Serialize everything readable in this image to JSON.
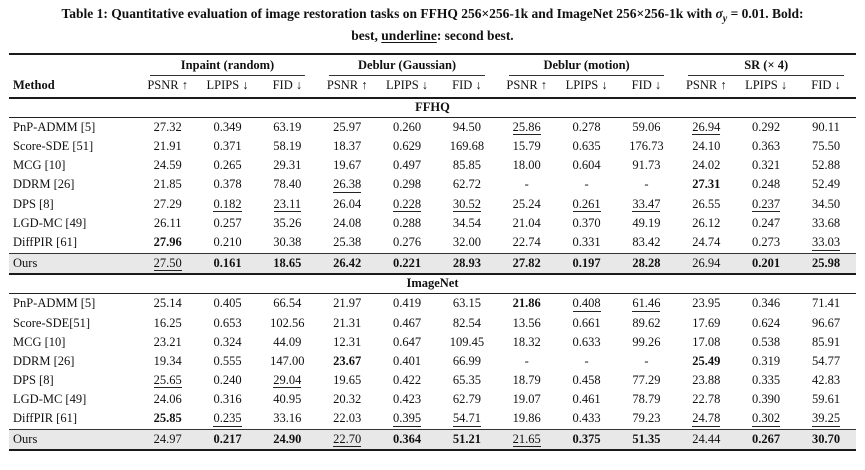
{
  "title": {
    "line1_pre": "Table 1: Quantitative evaluation of image restoration tasks on FFHQ 256×256-1k and ImageNet 256×256-1k with ",
    "sigma": "σ",
    "sigma_sub": "y",
    "line1_post": " = 0.01. Bold:",
    "line2_pre": "best, ",
    "underline_word": "underline",
    "line2_post": ": second best."
  },
  "table": {
    "method_header": "Method",
    "groups": [
      {
        "label": "Inpaint (random)"
      },
      {
        "label": "Deblur (Gaussian)"
      },
      {
        "label": "Deblur (motion)"
      },
      {
        "label": "SR (× 4)"
      }
    ],
    "metric_headers": [
      "PSNR ↑",
      "LPIPS ↓",
      "FID ↓"
    ],
    "legend": {
      "bold_means": "best",
      "underline_means": "second best"
    },
    "sections": [
      {
        "name": "FFHQ",
        "rows": [
          {
            "method": "PnP-ADMM [5]",
            "cells": [
              "27.32",
              "0.349",
              "63.19",
              "25.97",
              "0.260",
              "94.50",
              "u|25.86",
              "0.278",
              "59.06",
              "u|26.94",
              "0.292",
              "90.11"
            ]
          },
          {
            "method": "Score-SDE [51]",
            "cells": [
              "21.91",
              "0.371",
              "58.19",
              "18.37",
              "0.629",
              "169.68",
              "15.79",
              "0.635",
              "176.73",
              "24.10",
              "0.363",
              "75.50"
            ]
          },
          {
            "method": "MCG [10]",
            "cells": [
              "24.59",
              "0.265",
              "29.31",
              "19.67",
              "0.497",
              "85.85",
              "18.00",
              "0.604",
              "91.73",
              "24.02",
              "0.321",
              "52.88"
            ]
          },
          {
            "method": "DDRM [26]",
            "cells": [
              "21.85",
              "0.378",
              "78.40",
              "u|26.38",
              "0.298",
              "62.72",
              "-",
              "-",
              "-",
              "b|27.31",
              "0.248",
              "52.49"
            ]
          },
          {
            "method": "DPS [8]",
            "cells": [
              "27.29",
              "u|0.182",
              "u|23.11",
              "26.04",
              "u|0.228",
              "u|30.52",
              "25.24",
              "u|0.261",
              "u|33.47",
              "26.55",
              "u|0.237",
              "34.50"
            ]
          },
          {
            "method": "LGD-MC [49]",
            "cells": [
              "26.11",
              "0.257",
              "35.26",
              "24.08",
              "0.288",
              "34.54",
              "21.04",
              "0.370",
              "49.19",
              "26.12",
              "0.247",
              "33.68"
            ]
          },
          {
            "method": "DiffPIR [61]",
            "cells": [
              "b|27.96",
              "0.210",
              "30.38",
              "25.38",
              "0.276",
              "32.00",
              "22.74",
              "0.331",
              "83.42",
              "24.74",
              "0.273",
              "u|33.03"
            ]
          },
          {
            "method": "Ours",
            "highlight": true,
            "cells": [
              "u|27.50",
              "b|0.161",
              "b|18.65",
              "b|26.42",
              "b|0.221",
              "b|28.93",
              "b|27.82",
              "b|0.197",
              "b|28.28",
              "26.94",
              "b|0.201",
              "b|25.98"
            ]
          }
        ]
      },
      {
        "name": "ImageNet",
        "rows": [
          {
            "method": "PnP-ADMM [5]",
            "cells": [
              "25.14",
              "0.405",
              "66.54",
              "21.97",
              "0.419",
              "63.15",
              "b|21.86",
              "u|0.408",
              "u|61.46",
              "23.95",
              "0.346",
              "71.41"
            ]
          },
          {
            "method": "Score-SDE[51]",
            "cells": [
              "16.25",
              "0.653",
              "102.56",
              "21.31",
              "0.467",
              "82.54",
              "13.56",
              "0.661",
              "89.62",
              "17.69",
              "0.624",
              "96.67"
            ]
          },
          {
            "method": "MCG [10]",
            "cells": [
              "23.21",
              "0.324",
              "44.09",
              "12.31",
              "0.647",
              "109.45",
              "18.32",
              "0.633",
              "99.26",
              "17.08",
              "0.538",
              "85.91"
            ]
          },
          {
            "method": "DDRM [26]",
            "cells": [
              "19.34",
              "0.555",
              "147.00",
              "b|23.67",
              "0.401",
              "66.99",
              "-",
              "-",
              "-",
              "b|25.49",
              "0.319",
              "54.77"
            ]
          },
          {
            "method": "DPS [8]",
            "cells": [
              "u|25.65",
              "0.240",
              "u|29.04",
              "19.65",
              "0.422",
              "65.35",
              "18.79",
              "0.458",
              "77.29",
              "23.88",
              "0.335",
              "42.83"
            ]
          },
          {
            "method": "LGD-MC [49]",
            "cells": [
              "24.06",
              "0.316",
              "40.95",
              "20.32",
              "0.423",
              "62.79",
              "19.07",
              "0.461",
              "78.79",
              "22.78",
              "0.390",
              "59.61"
            ]
          },
          {
            "method": "DiffPIR [61]",
            "cells": [
              "b|25.85",
              "u|0.235",
              "33.16",
              "22.03",
              "u|0.395",
              "u|54.71",
              "19.86",
              "0.433",
              "79.23",
              "u|24.78",
              "u|0.302",
              "u|39.25"
            ]
          },
          {
            "method": "Ours",
            "highlight": true,
            "cells": [
              "24.97",
              "b|0.217",
              "b|24.90",
              "u|22.70",
              "b|0.364",
              "b|51.21",
              "u|21.65",
              "b|0.375",
              "b|51.35",
              "24.44",
              "b|0.267",
              "b|30.70"
            ]
          }
        ]
      }
    ]
  }
}
